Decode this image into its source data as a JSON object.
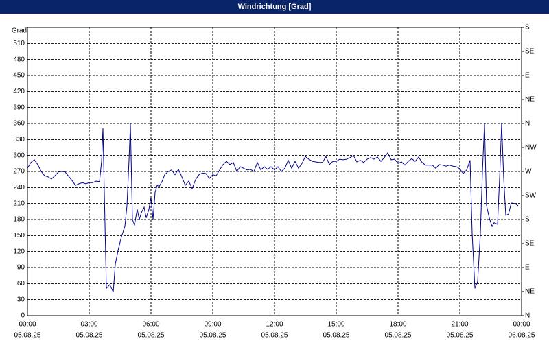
{
  "chart_data": {
    "type": "line",
    "title": "Windrichtung [Grad]",
    "ylabel": "Grad",
    "color": "#00008b",
    "grid": true,
    "xlim": [
      0,
      1440
    ],
    "xticks": [
      {
        "value": 0,
        "label": "00:00",
        "date": "05.08.25"
      },
      {
        "value": 180,
        "label": "03:00",
        "date": "05.08.25"
      },
      {
        "value": 360,
        "label": "06:00",
        "date": "05.08.25"
      },
      {
        "value": 540,
        "label": "09:00",
        "date": "05.08.25"
      },
      {
        "value": 720,
        "label": "12:00",
        "date": "05.08.25"
      },
      {
        "value": 900,
        "label": "15:00",
        "date": "05.08.25"
      },
      {
        "value": 1080,
        "label": "18:00",
        "date": "05.08.25"
      },
      {
        "value": 1260,
        "label": "21:00",
        "date": "05.08.25"
      },
      {
        "value": 1440,
        "label": "00:00",
        "date": "06.08.25"
      }
    ],
    "ylim": [
      0,
      540
    ],
    "yticks": [
      0,
      30,
      60,
      90,
      120,
      150,
      180,
      210,
      240,
      270,
      300,
      330,
      360,
      390,
      420,
      450,
      480,
      510
    ],
    "y2lim": [
      0,
      540
    ],
    "y2ticks": [
      {
        "value": 0,
        "label": "N"
      },
      {
        "value": 45,
        "label": "NE"
      },
      {
        "value": 90,
        "label": "E"
      },
      {
        "value": 135,
        "label": "SE"
      },
      {
        "value": 180,
        "label": "S"
      },
      {
        "value": 225,
        "label": "SW"
      },
      {
        "value": 270,
        "label": "W"
      },
      {
        "value": 315,
        "label": "NW"
      },
      {
        "value": 360,
        "label": "N"
      },
      {
        "value": 405,
        "label": "NE"
      },
      {
        "value": 450,
        "label": "E"
      },
      {
        "value": 495,
        "label": "SE"
      },
      {
        "value": 540,
        "label": "S"
      }
    ],
    "x": [
      0,
      10,
      20,
      30,
      40,
      50,
      60,
      70,
      80,
      90,
      100,
      110,
      120,
      130,
      140,
      150,
      160,
      170,
      180,
      190,
      200,
      210,
      216,
      220,
      224,
      230,
      240,
      250,
      256,
      264,
      274,
      284,
      290,
      296,
      300,
      306,
      312,
      320,
      326,
      332,
      340,
      346,
      354,
      360,
      366,
      372,
      378,
      384,
      392,
      400,
      410,
      420,
      430,
      440,
      450,
      460,
      470,
      480,
      490,
      500,
      510,
      520,
      530,
      540,
      550,
      560,
      570,
      580,
      590,
      600,
      610,
      620,
      630,
      640,
      650,
      660,
      670,
      680,
      690,
      700,
      710,
      720,
      730,
      740,
      750,
      760,
      770,
      780,
      790,
      800,
      810,
      820,
      830,
      840,
      850,
      860,
      870,
      880,
      890,
      900,
      910,
      920,
      930,
      940,
      950,
      960,
      970,
      980,
      990,
      1000,
      1010,
      1020,
      1030,
      1040,
      1050,
      1060,
      1070,
      1080,
      1090,
      1100,
      1110,
      1120,
      1130,
      1140,
      1150,
      1160,
      1170,
      1180,
      1190,
      1200,
      1210,
      1220,
      1230,
      1240,
      1250,
      1260,
      1270,
      1280,
      1290,
      1296,
      1304,
      1312,
      1320,
      1326,
      1332,
      1338,
      1346,
      1354,
      1360,
      1370,
      1376,
      1382,
      1388,
      1394,
      1402,
      1410,
      1420,
      1430
    ],
    "values": [
      276,
      287,
      292,
      283,
      270,
      262,
      260,
      256,
      262,
      269,
      270,
      269,
      261,
      253,
      244,
      247,
      249,
      247,
      249,
      249,
      252,
      251,
      289,
      351,
      231,
      51,
      58,
      44,
      96,
      122,
      148,
      167,
      206,
      291,
      360,
      180,
      170,
      199,
      180,
      193,
      203,
      183,
      199,
      222,
      180,
      231,
      244,
      242,
      251,
      264,
      270,
      273,
      264,
      274,
      260,
      244,
      252,
      238,
      255,
      264,
      267,
      266,
      257,
      264,
      262,
      273,
      283,
      289,
      283,
      287,
      270,
      279,
      276,
      273,
      274,
      270,
      287,
      273,
      279,
      274,
      279,
      273,
      279,
      270,
      276,
      291,
      276,
      289,
      276,
      285,
      298,
      293,
      289,
      288,
      287,
      287,
      298,
      283,
      289,
      289,
      293,
      292,
      293,
      296,
      300,
      288,
      291,
      287,
      293,
      296,
      293,
      297,
      289,
      296,
      305,
      292,
      293,
      285,
      288,
      282,
      289,
      294,
      289,
      297,
      287,
      282,
      282,
      282,
      276,
      283,
      282,
      280,
      282,
      280,
      279,
      275,
      266,
      273,
      291,
      154,
      51,
      64,
      154,
      270,
      360,
      206,
      183,
      167,
      174,
      171,
      257,
      360,
      257,
      188,
      190,
      211,
      210,
      206
    ]
  }
}
